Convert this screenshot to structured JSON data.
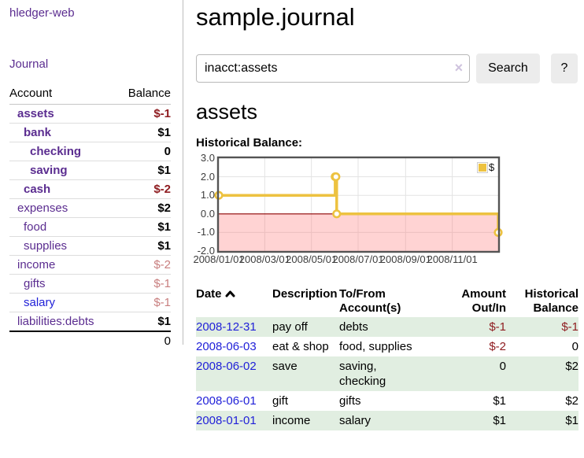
{
  "app": {
    "brand": "hledger-web"
  },
  "colors": {
    "accent_purple": "#5b2d90",
    "link_blue": "#1f1fd8",
    "negative_strong": "#8f1d21",
    "negative_soft": "#c87e7e",
    "row_stripe_green": "#e1eee1",
    "series_gold": "#edc240"
  },
  "sidebar": {
    "nav": [
      {
        "label": "Journal"
      }
    ],
    "accounts_table": {
      "headers": {
        "account": "Account",
        "balance": "Balance"
      },
      "rows": [
        {
          "name": "assets",
          "depth": 1,
          "bold": true,
          "balance": "$-1",
          "balance_class": "neg-strong"
        },
        {
          "name": "bank",
          "depth": 2,
          "bold": true,
          "balance": "$1",
          "balance_class": ""
        },
        {
          "name": "checking",
          "depth": 3,
          "bold": true,
          "balance": "0",
          "balance_class": ""
        },
        {
          "name": "saving",
          "depth": 3,
          "bold": true,
          "balance": "$1",
          "balance_class": ""
        },
        {
          "name": "cash",
          "depth": 2,
          "bold": true,
          "balance": "$-2",
          "balance_class": "neg-strong"
        },
        {
          "name": "expenses",
          "depth": 1,
          "bold": false,
          "balance": "$2",
          "balance_class": ""
        },
        {
          "name": "food",
          "depth": 2,
          "bold": false,
          "balance": "$1",
          "balance_class": ""
        },
        {
          "name": "supplies",
          "depth": 2,
          "bold": false,
          "balance": "$1",
          "balance_class": ""
        },
        {
          "name": "income",
          "depth": 1,
          "bold": false,
          "balance": "$-2",
          "balance_class": "neg-soft"
        },
        {
          "name": "gifts",
          "depth": 2,
          "bold": false,
          "balance": "$-1",
          "balance_class": "neg-soft"
        },
        {
          "name": "salary",
          "depth": 2,
          "bold": false,
          "balance": "$-1",
          "balance_class": "neg-soft",
          "link_class": "blue"
        },
        {
          "name": "liabilities:debts",
          "depth": 1,
          "bold": false,
          "balance": "$1",
          "balance_class": ""
        }
      ],
      "total": "0"
    }
  },
  "header": {
    "title": "sample.journal"
  },
  "search": {
    "value": "inacct:assets",
    "clear_icon": "×",
    "button_label": "Search",
    "help_label": "?"
  },
  "account_page": {
    "title": "assets",
    "chart_label": "Historical Balance:"
  },
  "chart_data": {
    "type": "line",
    "title": "Historical Balance",
    "series": [
      {
        "name": "$",
        "color": "#edc240",
        "step": true,
        "points": [
          [
            "2008-01-01",
            1
          ],
          [
            "2008-06-01",
            2
          ],
          [
            "2008-06-02",
            2
          ],
          [
            "2008-06-03",
            0
          ],
          [
            "2008-12-31",
            -1
          ]
        ]
      }
    ],
    "x_ticks": [
      "2008/01/01",
      "2008/03/01",
      "2008/05/01",
      "2008/07/01",
      "2008/09/01",
      "2008/11/01"
    ],
    "y_ticks": [
      3.0,
      2.0,
      1.0,
      0.0,
      -1.0,
      -2.0
    ],
    "ylim": [
      -2,
      3
    ],
    "xlim": [
      "2008-01-01",
      "2008-12-31"
    ],
    "grid": true,
    "legend_position": "top-right",
    "legend_label": "$",
    "zero_line_color": "#8b0000",
    "negative_region_color": "rgba(255,120,120,0.33)",
    "border_color": "#545454",
    "grid_color": "#e3e3e3"
  },
  "register_table": {
    "headers": {
      "date": "Date",
      "description": "Description",
      "account_line1": "To/From",
      "account_line2": "Account(s)",
      "amount_line1": "Amount",
      "amount_line2": "Out/In",
      "balance_line1": "Historical",
      "balance_line2": "Balance"
    },
    "rows": [
      {
        "date": "2008-12-31",
        "description": "pay off",
        "accounts": "debts",
        "amount": "$-1",
        "amount_neg": true,
        "balance": "$-1",
        "balance_neg": true
      },
      {
        "date": "2008-06-03",
        "description": "eat & shop",
        "accounts": "food, supplies",
        "amount": "$-2",
        "amount_neg": true,
        "balance": "0",
        "balance_neg": false
      },
      {
        "date": "2008-06-02",
        "description": "save",
        "accounts": "saving, checking",
        "amount": "0",
        "amount_neg": false,
        "balance": "$2",
        "balance_neg": false
      },
      {
        "date": "2008-06-01",
        "description": "gift",
        "accounts": "gifts",
        "amount": "$1",
        "amount_neg": false,
        "balance": "$2",
        "balance_neg": false
      },
      {
        "date": "2008-01-01",
        "description": "income",
        "accounts": "salary",
        "amount": "$1",
        "amount_neg": false,
        "balance": "$1",
        "balance_neg": false
      }
    ]
  }
}
